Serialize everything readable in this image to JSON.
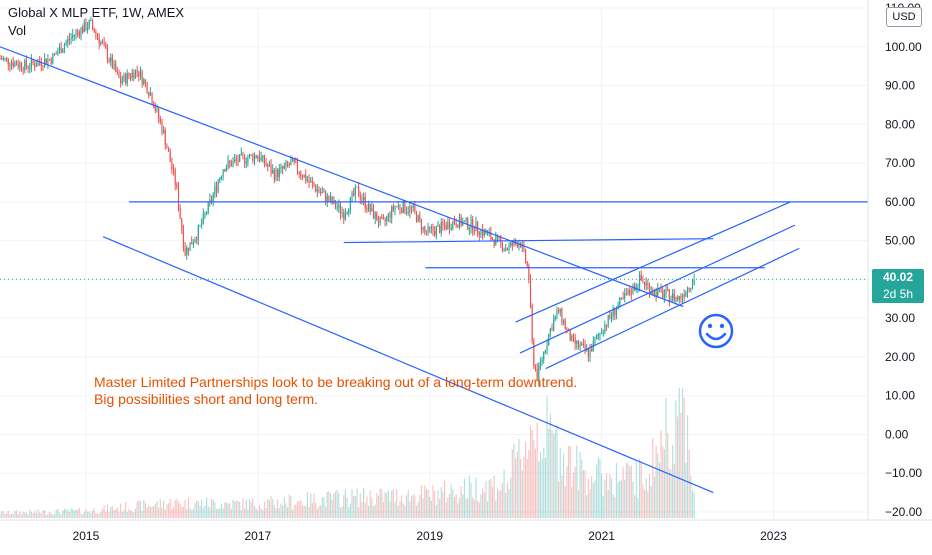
{
  "legend": {
    "symbol": "Global X MLP ETF, 1W, AMEX",
    "volume_label": "Vol"
  },
  "currency_button": "USD",
  "current_price": {
    "value_label": "40.02",
    "countdown": "2d 5h",
    "value": 40.02,
    "color": "#26a69a"
  },
  "annotation": {
    "line1": "Master Limited Partnerships look to be breaking out of a long-term downtrend.",
    "line2": "Big possibilities short and long term.",
    "color": "#e65100"
  },
  "colors": {
    "up": "#26a69a",
    "down": "#ef5350",
    "drawing": "#2962ff"
  },
  "chart_data": {
    "type": "candlestick",
    "title": "Global X MLP ETF, 1W, AMEX",
    "ylim": [
      -20,
      110
    ],
    "y_ticks": [
      110,
      100,
      90,
      80,
      70,
      60,
      50,
      40,
      30,
      20,
      10,
      0,
      -10,
      -20
    ],
    "y_tick_labels": [
      "110.00",
      "100.00",
      "90.00",
      "80.00",
      "70.00",
      "60.00",
      "50.00",
      "40.00",
      "30.00",
      "20.00",
      "10.00",
      "0.00",
      "−10.00",
      "−20.00"
    ],
    "x_range": [
      2014.0,
      2024.1
    ],
    "x_ticks": [
      2015,
      2017,
      2019,
      2021,
      2023
    ],
    "x_tick_labels": [
      "2015",
      "2017",
      "2019",
      "2021",
      "2023"
    ],
    "price_path": [
      [
        2014.0,
        97
      ],
      [
        2014.3,
        95
      ],
      [
        2014.6,
        97
      ],
      [
        2014.85,
        103
      ],
      [
        2015.05,
        106
      ],
      [
        2015.2,
        100
      ],
      [
        2015.4,
        91
      ],
      [
        2015.6,
        94
      ],
      [
        2015.75,
        88
      ],
      [
        2015.9,
        78
      ],
      [
        2016.05,
        64
      ],
      [
        2016.15,
        47
      ],
      [
        2016.3,
        52
      ],
      [
        2016.45,
        60
      ],
      [
        2016.6,
        69
      ],
      [
        2016.8,
        71
      ],
      [
        2017.0,
        72
      ],
      [
        2017.2,
        67
      ],
      [
        2017.4,
        70
      ],
      [
        2017.6,
        65
      ],
      [
        2017.85,
        60
      ],
      [
        2018.0,
        57
      ],
      [
        2018.15,
        63
      ],
      [
        2018.3,
        58
      ],
      [
        2018.45,
        54
      ],
      [
        2018.6,
        59
      ],
      [
        2018.8,
        58
      ],
      [
        2018.95,
        52
      ],
      [
        2019.1,
        53
      ],
      [
        2019.3,
        55
      ],
      [
        2019.5,
        54
      ],
      [
        2019.7,
        51
      ],
      [
        2019.9,
        48
      ],
      [
        2020.05,
        50
      ],
      [
        2020.15,
        42
      ],
      [
        2020.2,
        20
      ],
      [
        2020.25,
        15
      ],
      [
        2020.4,
        27
      ],
      [
        2020.5,
        32
      ],
      [
        2020.65,
        24
      ],
      [
        2020.85,
        21
      ],
      [
        2021.0,
        27
      ],
      [
        2021.15,
        32
      ],
      [
        2021.3,
        36
      ],
      [
        2021.45,
        40
      ],
      [
        2021.6,
        37
      ],
      [
        2021.75,
        36
      ],
      [
        2021.9,
        35
      ],
      [
        2022.0,
        38
      ],
      [
        2022.08,
        40.02
      ]
    ],
    "volume_path": [
      [
        2014.0,
        0.5
      ],
      [
        2015.0,
        0.7
      ],
      [
        2016.0,
        1.5
      ],
      [
        2017.0,
        1.4
      ],
      [
        2018.0,
        2.0
      ],
      [
        2019.0,
        2.3
      ],
      [
        2019.9,
        3.5
      ],
      [
        2020.2,
        9
      ],
      [
        2020.4,
        8
      ],
      [
        2020.7,
        5
      ],
      [
        2021.0,
        4
      ],
      [
        2021.5,
        4
      ],
      [
        2021.95,
        12
      ],
      [
        2022.08,
        3
      ]
    ],
    "trend_lines": [
      {
        "x1": 2014.0,
        "y1": 100,
        "x2": 2021.95,
        "y2": 33
      },
      {
        "x1": 2015.2,
        "y1": 51,
        "x2": 2022.3,
        "y2": -15
      },
      {
        "x1": 2015.5,
        "y1": 60,
        "x2": 2024.1,
        "y2": 60
      },
      {
        "x1": 2018.0,
        "y1": 49.5,
        "x2": 2022.3,
        "y2": 50.5
      },
      {
        "x1": 2018.95,
        "y1": 43,
        "x2": 2022.9,
        "y2": 43
      },
      {
        "x1": 2020.0,
        "y1": 29,
        "x2": 2023.2,
        "y2": 60
      },
      {
        "x1": 2020.05,
        "y1": 21,
        "x2": 2023.25,
        "y2": 54
      },
      {
        "x1": 2020.35,
        "y1": 17,
        "x2": 2023.3,
        "y2": 48
      }
    ],
    "annotations": [
      "Master Limited Partnerships look to be breaking out of a long-term downtrend.",
      "Big possibilities short and long term."
    ]
  }
}
